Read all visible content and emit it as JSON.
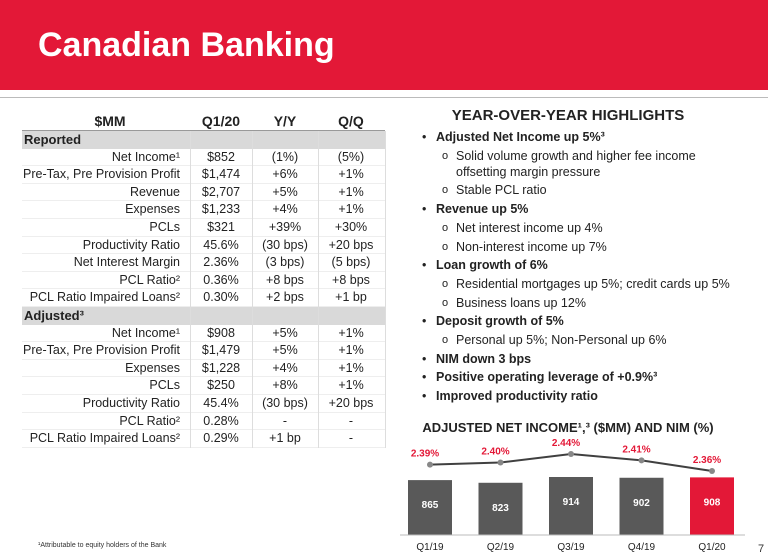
{
  "header": {
    "title": "Canadian Banking"
  },
  "table": {
    "columns": [
      "$MM",
      "Q1/20",
      "Y/Y",
      "Q/Q"
    ],
    "sections": [
      {
        "name": "Reported",
        "rows": [
          [
            "Net Income¹",
            "$852",
            "(1%)",
            "(5%)"
          ],
          [
            "Pre-Tax, Pre Provision Profit",
            "$1,474",
            "+6%",
            "+1%"
          ],
          [
            "Revenue",
            "$2,707",
            "+5%",
            "+1%"
          ],
          [
            "Expenses",
            "$1,233",
            "+4%",
            "+1%"
          ],
          [
            "PCLs",
            "$321",
            "+39%",
            "+30%"
          ],
          [
            "Productivity Ratio",
            "45.6%",
            "(30 bps)",
            "+20 bps"
          ],
          [
            "Net Interest Margin",
            "2.36%",
            "(3 bps)",
            "(5 bps)"
          ],
          [
            "PCL Ratio²",
            "0.36%",
            "+8 bps",
            "+8 bps"
          ],
          [
            "PCL Ratio Impaired Loans²",
            "0.30%",
            "+2 bps",
            "+1 bp"
          ]
        ]
      },
      {
        "name": "Adjusted³",
        "rows": [
          [
            "Net Income¹",
            "$908",
            "+5%",
            "+1%"
          ],
          [
            "Pre-Tax, Pre Provision Profit",
            "$1,479",
            "+5%",
            "+1%"
          ],
          [
            "Expenses",
            "$1,228",
            "+4%",
            "+1%"
          ],
          [
            "PCLs",
            "$250",
            "+8%",
            "+1%"
          ],
          [
            "Productivity Ratio",
            "45.4%",
            "(30 bps)",
            "+20 bps"
          ],
          [
            "PCL Ratio²",
            "0.28%",
            "-",
            "-"
          ],
          [
            "PCL Ratio Impaired Loans²",
            "0.29%",
            "+1 bp",
            "-"
          ]
        ]
      }
    ]
  },
  "highlights": {
    "title": "YEAR-OVER-YEAR HIGHLIGHTS",
    "items": [
      {
        "text": "Adjusted Net Income up 5%³",
        "sub": [
          "Solid volume growth and higher fee income offsetting margin pressure",
          "Stable PCL ratio"
        ]
      },
      {
        "text": "Revenue up 5%",
        "sub": [
          "Net interest income up 4%",
          "Non-interest income up 7%"
        ]
      },
      {
        "text": "Loan growth of 6%",
        "sub": [
          "Residential mortgages up 5%; credit cards up 5%",
          "Business loans up 12%"
        ]
      },
      {
        "text": "Deposit growth of 5%",
        "sub": [
          "Personal up 5%; Non-Personal up 6%"
        ]
      },
      {
        "text": "NIM down 3 bps",
        "sub": []
      },
      {
        "text": "Positive operating leverage of +0.9%³",
        "sub": []
      },
      {
        "text": "Improved productivity ratio",
        "sub": []
      }
    ]
  },
  "chart": {
    "type": "bar-line",
    "title": "ADJUSTED NET INCOME¹,³ ($MM) AND NIM (%)",
    "categories": [
      "Q1/19",
      "Q2/19",
      "Q3/19",
      "Q4/19",
      "Q1/20"
    ],
    "bars": {
      "values": [
        865,
        823,
        914,
        902,
        908
      ],
      "colors": [
        "#595959",
        "#595959",
        "#595959",
        "#595959",
        "#e31837"
      ]
    },
    "nim": {
      "values": [
        2.39,
        2.4,
        2.44,
        2.41,
        2.36
      ],
      "value_labels": [
        "2.39%",
        "2.40%",
        "2.44%",
        "2.41%",
        "2.36%"
      ],
      "color": "#e31837"
    }
  },
  "footer": {
    "note": "¹Attributable to equity holders of the Bank",
    "page": "7"
  }
}
